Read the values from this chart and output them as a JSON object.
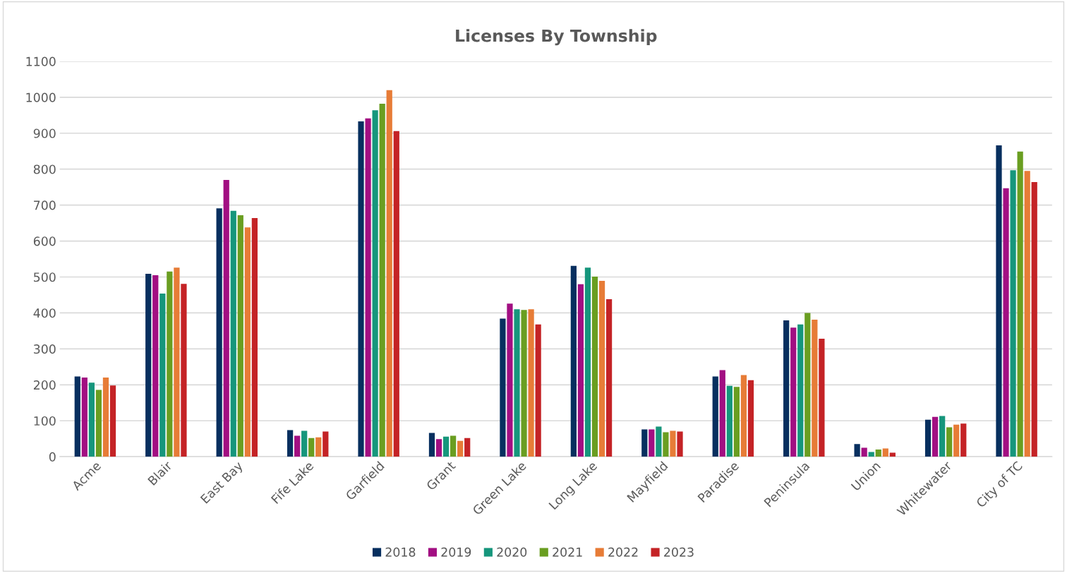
{
  "chart_data": {
    "type": "bar",
    "title": "Licenses By Township",
    "categories": [
      "Acme",
      "Blair",
      "East Bay",
      "Fife Lake",
      "Garfield",
      "Grant",
      "Green Lake",
      "Long Lake",
      "Mayfield",
      "Paradise",
      "Peninsula",
      "Union",
      "Whitewater",
      "City of TC"
    ],
    "series": [
      {
        "name": "2018",
        "color": "#072f5f",
        "values": [
          223,
          509,
          691,
          74,
          933,
          66,
          384,
          531,
          76,
          223,
          379,
          35,
          103,
          866
        ]
      },
      {
        "name": "2019",
        "color": "#a20f82",
        "values": [
          220,
          505,
          770,
          58,
          941,
          49,
          426,
          480,
          76,
          241,
          359,
          25,
          111,
          747
        ]
      },
      {
        "name": "2020",
        "color": "#16967c",
        "values": [
          206,
          454,
          684,
          72,
          964,
          56,
          410,
          526,
          84,
          197,
          368,
          13,
          113,
          797
        ]
      },
      {
        "name": "2021",
        "color": "#6a9e21",
        "values": [
          186,
          515,
          672,
          52,
          982,
          58,
          408,
          501,
          68,
          194,
          400,
          20,
          82,
          849
        ]
      },
      {
        "name": "2022",
        "color": "#e77c37",
        "values": [
          220,
          526,
          638,
          54,
          1020,
          44,
          410,
          489,
          72,
          227,
          381,
          23,
          89,
          795
        ]
      },
      {
        "name": "2023",
        "color": "#c42326",
        "values": [
          198,
          481,
          664,
          70,
          906,
          52,
          368,
          438,
          70,
          213,
          328,
          11,
          92,
          764
        ]
      }
    ],
    "ylim": [
      0,
      1100
    ],
    "yticks": [
      0,
      100,
      200,
      300,
      400,
      500,
      600,
      700,
      800,
      900,
      1000,
      1100
    ],
    "grid": "y",
    "legend": "bottom"
  }
}
